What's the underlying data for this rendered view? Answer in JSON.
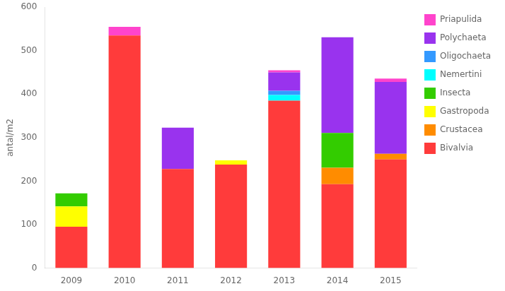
{
  "chart_data": {
    "type": "bar",
    "stacked": true,
    "categories": [
      "2009",
      "2010",
      "2011",
      "2012",
      "2013",
      "2014",
      "2015"
    ],
    "series": [
      {
        "name": "Bivalvia",
        "color": "#FF3B3B",
        "values": [
          95,
          535,
          228,
          238,
          385,
          193,
          250
        ]
      },
      {
        "name": "Crustacea",
        "color": "#FF8C00",
        "values": [
          0,
          0,
          0,
          0,
          0,
          38,
          13
        ]
      },
      {
        "name": "Gastropoda",
        "color": "#FFFF00",
        "values": [
          47,
          0,
          0,
          10,
          0,
          0,
          0
        ]
      },
      {
        "name": "Insecta",
        "color": "#33CC00",
        "values": [
          30,
          0,
          0,
          0,
          0,
          80,
          0
        ]
      },
      {
        "name": "Nemertini",
        "color": "#00FFFF",
        "values": [
          0,
          0,
          0,
          0,
          13,
          0,
          0
        ]
      },
      {
        "name": "Oligochaeta",
        "color": "#3399FF",
        "values": [
          0,
          0,
          0,
          0,
          10,
          0,
          0
        ]
      },
      {
        "name": "Polychaeta",
        "color": "#9933EE",
        "values": [
          0,
          0,
          95,
          0,
          42,
          220,
          165
        ]
      },
      {
        "name": "Priapulida",
        "color": "#FF44CC",
        "values": [
          0,
          20,
          0,
          0,
          5,
          0,
          8
        ]
      }
    ],
    "ylabel": "antal/m2",
    "ylim": [
      0,
      600
    ],
    "yticks": [
      0,
      100,
      200,
      300,
      400,
      500,
      600
    ],
    "grid": false,
    "legend": "right"
  }
}
